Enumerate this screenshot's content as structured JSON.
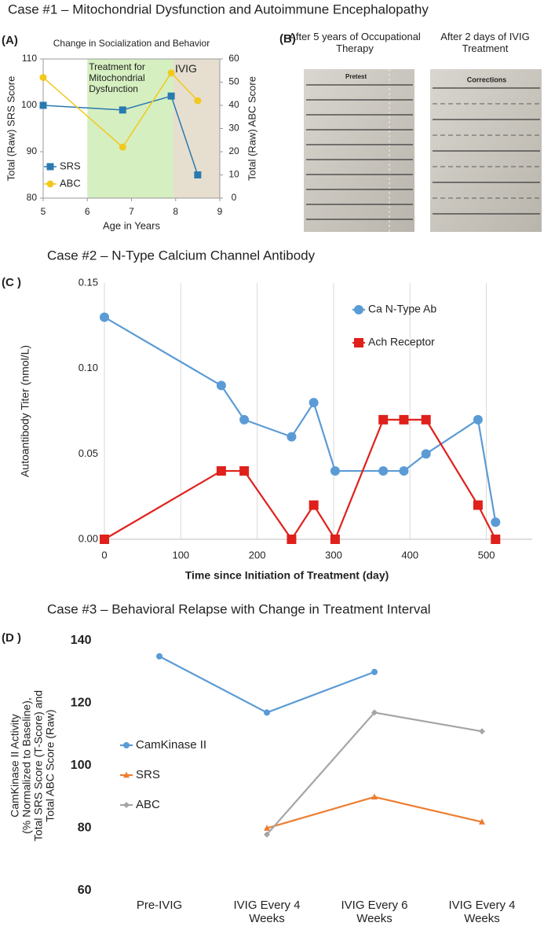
{
  "figure": {
    "headings": [
      "Case #1 – Mitochondrial Dysfunction and Autoimmune Encephalopathy",
      "Case #2 – N-Type Calcium Channel Antibody",
      "Case #3 – Behavioral Relapse with Change in Treatment Interval"
    ],
    "panel_labels": [
      "(A)",
      "(B)",
      "(C )",
      "(D )"
    ],
    "panel_b": {
      "captions": [
        "After 5 years of Occupational Therapy",
        "After 2 days of IVIG Treatment"
      ],
      "sheet_labels": [
        "Pretest",
        "Corrections"
      ]
    }
  },
  "chart_data": [
    {
      "type": "line",
      "title": "Change in Socialization and Behavior",
      "xlabel": "Age in Years",
      "ylabel": "Total (Raw) SRS Score",
      "y2label": "Total (Raw) ABC Score",
      "x": [
        5,
        6.8,
        7.9,
        8.5
      ],
      "series": [
        {
          "name": "SRS",
          "color": "#2a7ab0",
          "marker": "square",
          "values": [
            100,
            99,
            102,
            85
          ]
        },
        {
          "name": "ABC",
          "color": "#f2c81e",
          "marker": "circle",
          "axis": "y2",
          "values": [
            52,
            22,
            54,
            42
          ]
        }
      ],
      "regions": [
        {
          "label": "Treatment for Mitochondrial Dysfunction",
          "x": [
            6,
            7.95
          ],
          "color": "#d5efc0"
        },
        {
          "label": "IVIG",
          "x": [
            7.95,
            9
          ],
          "color": "#e6dfcf"
        }
      ],
      "xlim": [
        5,
        9
      ],
      "xticks": [
        5,
        6,
        7,
        8,
        9
      ],
      "ylim": [
        80,
        110
      ],
      "yticks": [
        80,
        90,
        100,
        110
      ],
      "y2lim": [
        0,
        60
      ],
      "y2ticks": [
        0,
        10,
        20,
        30,
        40,
        50,
        60
      ],
      "legend": "lower-left"
    },
    {
      "type": "line",
      "xlabel": "Time since Initiation of Treatment (day)",
      "ylabel": "Autoantibody Titer (nmol/L)",
      "x": [
        0,
        153,
        183,
        245,
        274,
        302,
        365,
        392,
        421,
        489,
        512
      ],
      "series": [
        {
          "name": "Ca N-Type Ab",
          "color": "#5b9bd5",
          "marker": "circle",
          "values": [
            0.13,
            0.09,
            0.07,
            0.06,
            0.08,
            0.04,
            0.04,
            0.04,
            0.05,
            0.07,
            0.01
          ]
        },
        {
          "name": "Ach Receptor",
          "color": "#e0201b",
          "marker": "square",
          "values": [
            0,
            0.04,
            0.04,
            0,
            0.02,
            0,
            0.07,
            0.07,
            0.07,
            0.02,
            0
          ]
        }
      ],
      "xlim": [
        0,
        560
      ],
      "xticks": [
        0,
        100,
        200,
        300,
        400,
        500
      ],
      "ylim": [
        0,
        0.15
      ],
      "yticks": [
        {
          "value": 0,
          "label": "0.00"
        },
        {
          "value": 0.05,
          "label": "0.05"
        },
        {
          "value": 0.1,
          "label": "0.10"
        },
        {
          "value": 0.15,
          "label": "0.15"
        }
      ],
      "grid": "x",
      "legend": "upper-right"
    },
    {
      "type": "line",
      "ylabel": [
        "CamKinase II Activity",
        "(% Normalized to Baseline),",
        "Total SRS Score (T-Score) and",
        "Total ABC Score (Raw)"
      ],
      "categories": [
        "Pre-IVIG",
        "IVIG Every 4 Weeks",
        "IVIG Every 6 Weeks",
        "IVIG Every 4 Weeks"
      ],
      "series": [
        {
          "name": "CamKinase II",
          "color": "#5b9bd5",
          "marker": "circle",
          "values": [
            135,
            117,
            130,
            null
          ]
        },
        {
          "name": "SRS",
          "color": "#ed7d31",
          "marker": "triangle",
          "values": [
            null,
            80,
            90,
            82
          ]
        },
        {
          "name": "ABC",
          "color": "#a5a5a5",
          "marker": "diamond",
          "values": [
            null,
            78,
            117,
            111
          ]
        }
      ],
      "ylim": [
        60,
        140
      ],
      "yticks": [
        60,
        80,
        100,
        120,
        140
      ],
      "legend": "center-left"
    }
  ]
}
